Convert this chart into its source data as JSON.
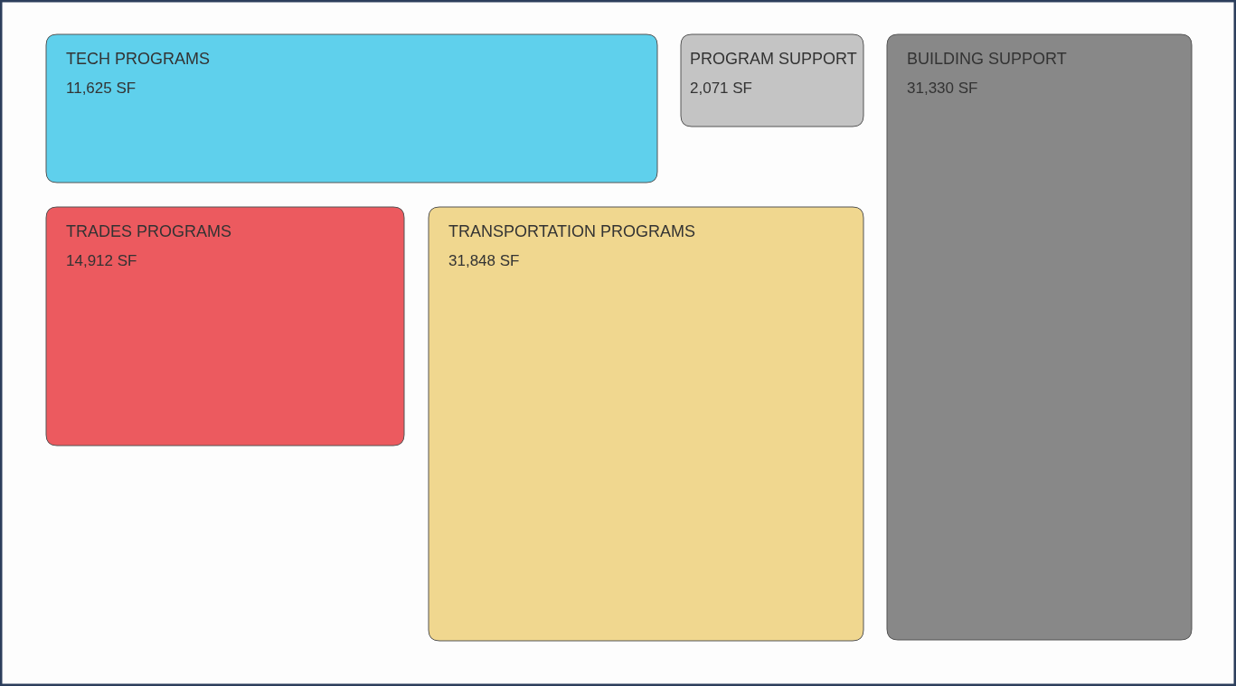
{
  "chart_data": {
    "type": "other",
    "categories": [
      "TECH PROGRAMS",
      "PROGRAM SUPPORT",
      "BUILDING SUPPORT",
      "TRADES PROGRAMS",
      "TRANSPORTATION PROGRAMS"
    ],
    "values": [
      11625,
      2071,
      31330,
      14912,
      31848
    ],
    "value_labels": [
      "11,625 SF",
      "2,071 SF",
      "31,330 SF",
      "14,912 SF",
      "31,848 SF"
    ],
    "colors": [
      "#5fd0ec",
      "#c4c4c4",
      "#888888",
      "#ec5a5f",
      "#f0d78f"
    ]
  }
}
